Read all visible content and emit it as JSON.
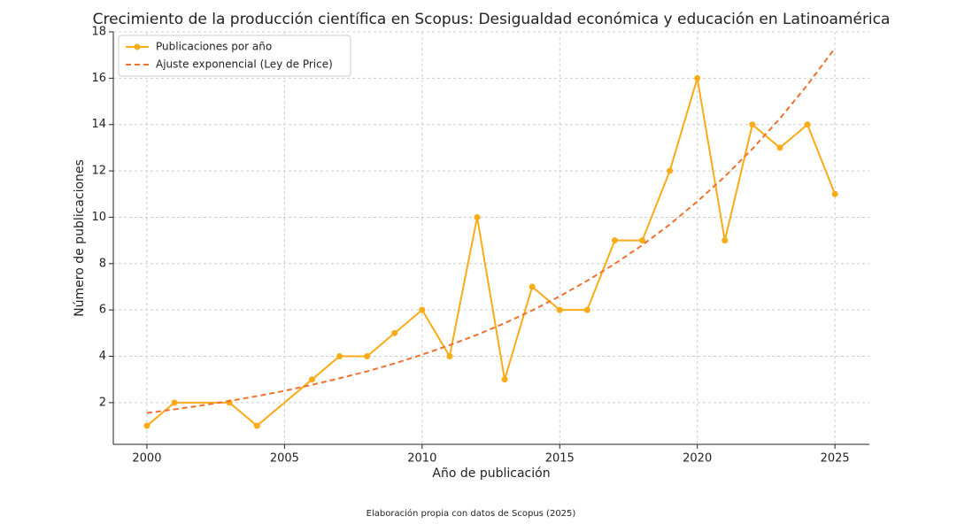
{
  "chart_data": {
    "type": "line",
    "title": "Crecimiento de la producción científica en Scopus: Desigualdad económica y educación en Latinoamérica",
    "xlabel": "Año de publicación",
    "ylabel": "Número de publicaciones",
    "caption": "Elaboración propia con datos de Scopus (2025)",
    "xlim": [
      1998.78,
      2026.25
    ],
    "ylim": [
      0.2,
      18
    ],
    "xticks": [
      2000,
      2005,
      2010,
      2015,
      2020,
      2025
    ],
    "yticks": [
      2,
      4,
      6,
      8,
      10,
      12,
      14,
      16,
      18
    ],
    "grid": true,
    "legend": "upper left",
    "series": [
      {
        "name": "Publicaciones por año",
        "color": "#fbab18",
        "linestyle": "solid",
        "marker": true,
        "x": [
          2000,
          2001,
          2003,
          2004,
          2006,
          2007,
          2008,
          2009,
          2010,
          2011,
          2012,
          2013,
          2014,
          2015,
          2016,
          2017,
          2018,
          2019,
          2020,
          2021,
          2022,
          2023,
          2024,
          2025
        ],
        "values": [
          1,
          2,
          2,
          1,
          3,
          4,
          4,
          5,
          6,
          4,
          10,
          3,
          7,
          6,
          6,
          9,
          9,
          12,
          16,
          9,
          14,
          13,
          14,
          11
        ]
      },
      {
        "name": "Ajuste exponencial (Ley de Price)",
        "color": "#f2702e",
        "linestyle": "dashed",
        "marker": false,
        "x": [
          2000,
          2001,
          2002,
          2003,
          2004,
          2005,
          2006,
          2007,
          2008,
          2009,
          2010,
          2011,
          2012,
          2013,
          2014,
          2015,
          2016,
          2017,
          2018,
          2019,
          2020,
          2021,
          2022,
          2023,
          2024,
          2025
        ],
        "values": [
          1.55,
          1.71,
          1.88,
          2.07,
          2.28,
          2.51,
          2.77,
          3.05,
          3.35,
          3.69,
          4.07,
          4.48,
          4.93,
          5.43,
          5.98,
          6.59,
          7.26,
          7.99,
          8.8,
          9.69,
          10.68,
          11.76,
          12.95,
          14.26,
          15.71,
          17.3
        ]
      }
    ]
  }
}
